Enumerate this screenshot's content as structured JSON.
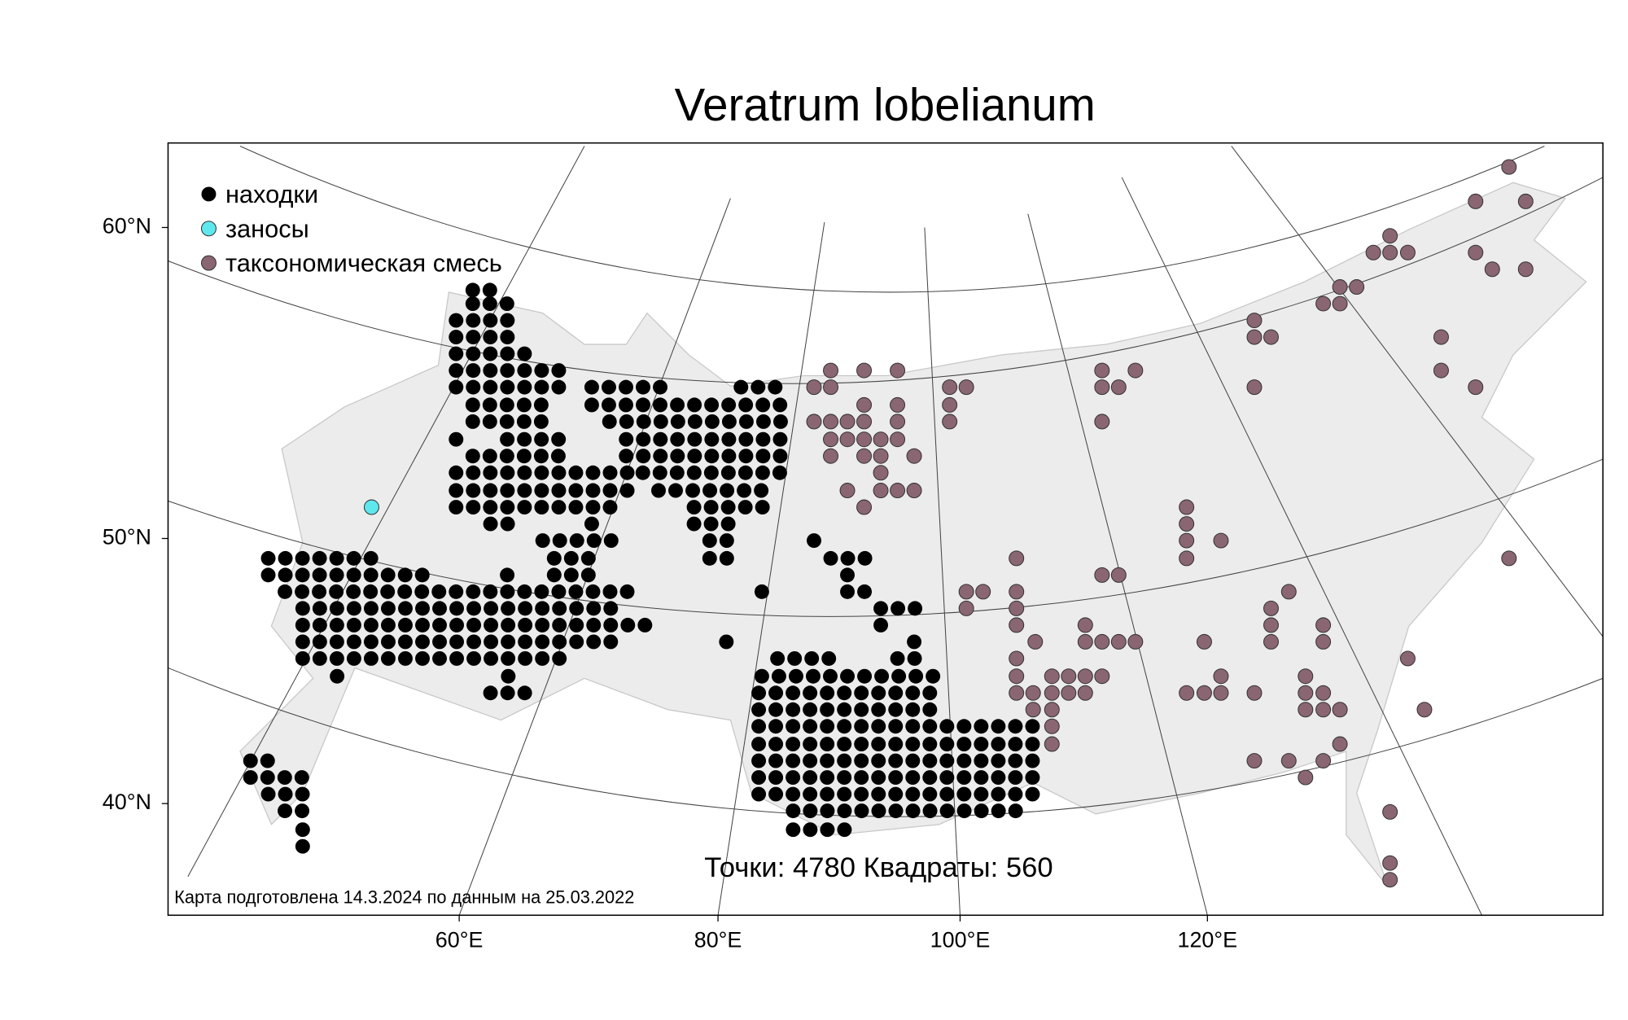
{
  "title": "Veratrum lobelianum",
  "legend": [
    "находки",
    "заносы",
    "таксономическая смесь"
  ],
  "lat_labels": [
    "60°N",
    "50°N",
    "40°N"
  ],
  "lon_labels": [
    "60°E",
    "80°E",
    "100°E",
    "120°E"
  ],
  "stats": "Точки: 4780 Квадраты: 560",
  "footer": "Карта подготовлена 14.3.2024 по данным на 25.03.2022"
}
